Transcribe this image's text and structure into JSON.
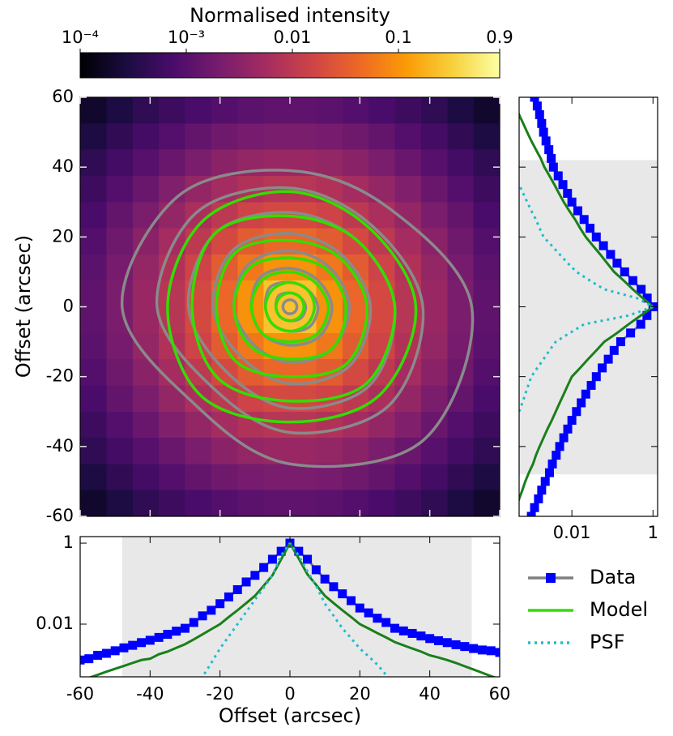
{
  "chart_data": [
    {
      "type": "heatmap",
      "ylabel": "Offset (arcsec)",
      "xlim": [
        -60,
        60
      ],
      "ylim": [
        -60,
        60
      ],
      "xticks": [
        -60,
        -40,
        -20,
        0,
        20,
        40,
        60
      ],
      "yticks": [
        -60,
        -40,
        -20,
        0,
        20,
        40,
        60
      ],
      "colormap": [
        "#000004",
        "#1b0c41",
        "#4a0c6b",
        "#781c6d",
        "#a52c60",
        "#cf4446",
        "#ed6925",
        "#fb9b06",
        "#f7d13d",
        "#fcffa4"
      ],
      "colorbar": {
        "label": "Normalised intensity",
        "log": true,
        "lim": [
          0.0001,
          0.9
        ],
        "ticks": [
          {
            "value": 0.0001,
            "label": "10⁻⁴"
          },
          {
            "value": 0.001,
            "label": "10⁻³"
          },
          0.01,
          0.1,
          0.9
        ]
      },
      "values": [
        [
          0.0002,
          0.00029,
          0.00042,
          0.00057,
          0.00076,
          0.00093,
          0.0011,
          0.0012,
          0.0012,
          0.0011,
          0.00093,
          0.00076,
          0.00057,
          0.00042,
          0.00029,
          0.0002
        ],
        [
          0.00029,
          0.00044,
          0.00066,
          0.00093,
          0.0013,
          0.0017,
          0.002,
          0.0022,
          0.0022,
          0.002,
          0.0017,
          0.0013,
          0.00093,
          0.00066,
          0.00044,
          0.00029
        ],
        [
          0.00042,
          0.00066,
          0.001,
          0.0015,
          0.0022,
          0.0031,
          0.0038,
          0.0043,
          0.0043,
          0.0038,
          0.0031,
          0.0022,
          0.0015,
          0.001,
          0.00066,
          0.00042
        ],
        [
          0.00057,
          0.00093,
          0.0015,
          0.0025,
          0.0038,
          0.0056,
          0.0074,
          0.0086,
          0.0086,
          0.0074,
          0.0056,
          0.0038,
          0.0025,
          0.0015,
          0.00093,
          0.00057
        ],
        [
          0.00076,
          0.0013,
          0.0022,
          0.0038,
          0.0065,
          0.01,
          0.015,
          0.018,
          0.018,
          0.015,
          0.01,
          0.0065,
          0.0038,
          0.0022,
          0.0013,
          0.00076
        ],
        [
          0.00093,
          0.0017,
          0.0031,
          0.0056,
          0.01,
          0.018,
          0.03,
          0.04,
          0.04,
          0.03,
          0.018,
          0.01,
          0.0056,
          0.0031,
          0.0017,
          0.00093
        ],
        [
          0.0011,
          0.002,
          0.0038,
          0.0074,
          0.015,
          0.03,
          0.058,
          0.097,
          0.097,
          0.058,
          0.03,
          0.015,
          0.0074,
          0.0038,
          0.002,
          0.0011
        ],
        [
          0.0012,
          0.0022,
          0.0043,
          0.0086,
          0.018,
          0.04,
          0.097,
          0.25,
          0.25,
          0.097,
          0.04,
          0.018,
          0.0086,
          0.0043,
          0.0022,
          0.0012
        ],
        [
          0.0012,
          0.0022,
          0.0043,
          0.0086,
          0.018,
          0.04,
          0.097,
          0.25,
          0.25,
          0.097,
          0.04,
          0.018,
          0.0086,
          0.0043,
          0.0022,
          0.0012
        ],
        [
          0.0011,
          0.002,
          0.0038,
          0.0074,
          0.015,
          0.03,
          0.058,
          0.097,
          0.097,
          0.058,
          0.03,
          0.015,
          0.0074,
          0.0038,
          0.002,
          0.0011
        ],
        [
          0.00093,
          0.0017,
          0.0031,
          0.0056,
          0.01,
          0.018,
          0.03,
          0.04,
          0.04,
          0.03,
          0.018,
          0.01,
          0.0056,
          0.0031,
          0.0017,
          0.00093
        ],
        [
          0.00076,
          0.0013,
          0.0022,
          0.0038,
          0.0065,
          0.01,
          0.015,
          0.018,
          0.018,
          0.015,
          0.01,
          0.0065,
          0.0038,
          0.0022,
          0.0013,
          0.00076
        ],
        [
          0.00057,
          0.00093,
          0.0015,
          0.0025,
          0.0038,
          0.0056,
          0.0074,
          0.0086,
          0.0086,
          0.0074,
          0.0056,
          0.0038,
          0.0025,
          0.0015,
          0.00093,
          0.00057
        ],
        [
          0.00042,
          0.00066,
          0.001,
          0.0015,
          0.0022,
          0.0031,
          0.0038,
          0.0043,
          0.0043,
          0.0038,
          0.0031,
          0.0022,
          0.0015,
          0.001,
          0.00066,
          0.00042
        ],
        [
          0.00029,
          0.00044,
          0.00066,
          0.00093,
          0.0013,
          0.0017,
          0.002,
          0.0022,
          0.0022,
          0.002,
          0.0017,
          0.0013,
          0.00093,
          0.00066,
          0.00044,
          0.00029
        ],
        [
          0.0002,
          0.00029,
          0.00042,
          0.00057,
          0.00076,
          0.00093,
          0.0011,
          0.0012,
          0.0012,
          0.0011,
          0.00093,
          0.00076,
          0.00057,
          0.00042,
          0.00029,
          0.0002
        ]
      ],
      "contours": {
        "angles": [
          0,
          45,
          90,
          135,
          180,
          225,
          270,
          315
        ],
        "sets": [
          {
            "color": "#8a8a8a",
            "radii": [
              [
                52,
                40,
                39,
                45,
                48,
                39,
                45,
                54
              ],
              [
                38,
                33,
                34,
                38,
                38,
                32,
                36,
                40
              ],
              [
                30,
                27,
                27,
                30,
                29,
                26,
                29,
                32
              ],
              [
                23,
                21,
                21,
                23,
                22,
                20,
                22,
                24
              ],
              [
                17,
                16,
                16,
                17,
                16,
                15,
                16,
                17
              ],
              [
                12,
                11,
                11,
                12,
                11,
                11,
                11,
                12
              ],
              [
                8,
                7,
                7,
                8,
                7,
                7,
                7,
                8
              ],
              [
                4.5,
                4,
                4,
                4.5,
                4,
                4,
                4,
                4.5
              ],
              [
                2,
                2,
                2,
                2,
                2,
                2,
                2,
                2
              ]
            ]
          },
          {
            "color": "#33dd00",
            "radii": [
              [
                36,
                32,
                33,
                35,
                35,
                36,
                33,
                36
              ],
              [
                30,
                27,
                26,
                30,
                28,
                29,
                27,
                31
              ],
              [
                22,
                20,
                19,
                22,
                21,
                22,
                20,
                23
              ],
              [
                16,
                15,
                14,
                16,
                16,
                16,
                15,
                17
              ],
              [
                11,
                10,
                10,
                11,
                11,
                11,
                10,
                11
              ],
              [
                7,
                7,
                7,
                7,
                7,
                7,
                7,
                7
              ],
              [
                4,
                4,
                4,
                4,
                4,
                4,
                4,
                4
              ]
            ]
          }
        ]
      }
    },
    {
      "type": "profile-vertical",
      "xlim": [
        0.0005,
        1.3
      ],
      "xlog": true,
      "xticks": [
        0.01,
        1
      ],
      "ylim": [
        -60,
        60
      ],
      "yticks": [
        -60,
        -40,
        -20,
        0,
        20,
        40,
        60
      ],
      "shaded_range": [
        -48,
        42
      ],
      "y": [
        -60,
        -57.5,
        -55,
        -52.5,
        -50,
        -47.5,
        -45,
        -42.5,
        -40,
        -37.5,
        -35,
        -32.5,
        -30,
        -27.5,
        -25,
        -22.5,
        -20,
        -17.5,
        -15,
        -12.5,
        -10,
        -7.5,
        -5,
        -2.5,
        0,
        2.5,
        5,
        7.5,
        10,
        12.5,
        15,
        17.5,
        20,
        22.5,
        25,
        27.5,
        30,
        32.5,
        35,
        37.5,
        40,
        42.5,
        45,
        47.5,
        50,
        52.5,
        55,
        57.5,
        60
      ],
      "series": [
        {
          "color": "#0000ff",
          "line_color": "#808080",
          "marker": "square",
          "style": "solid",
          "values": [
            0.001,
            0.0012,
            0.0015,
            0.0018,
            0.0022,
            0.0028,
            0.0033,
            0.0041,
            0.005,
            0.0063,
            0.0079,
            0.01,
            0.013,
            0.017,
            0.022,
            0.03,
            0.04,
            0.056,
            0.079,
            0.11,
            0.16,
            0.28,
            0.5,
            0.71,
            1,
            0.72,
            0.51,
            0.32,
            0.2,
            0.13,
            0.09,
            0.06,
            0.04,
            0.028,
            0.02,
            0.014,
            0.01,
            0.0078,
            0.006,
            0.0046,
            0.0035,
            0.0031,
            0.0027,
            0.0023,
            0.002,
            0.0018,
            0.0016,
            0.0014,
            0.0012
          ]
        },
        {
          "color": "#33dd00",
          "line_color": "#1a7f1a",
          "style": "solid",
          "values": [
            0.00035,
            0.00042,
            0.0005,
            0.0006,
            0.00071,
            0.00087,
            0.0011,
            0.0013,
            0.0016,
            0.002,
            0.0025,
            0.0032,
            0.004,
            0.005,
            0.0063,
            0.0079,
            0.01,
            0.016,
            0.025,
            0.04,
            0.063,
            0.13,
            0.25,
            0.5,
            1,
            0.56,
            0.32,
            0.19,
            0.11,
            0.074,
            0.05,
            0.033,
            0.022,
            0.016,
            0.012,
            0.0086,
            0.0063,
            0.0048,
            0.0037,
            0.0028,
            0.0021,
            0.0017,
            0.0013,
            0.001,
            0.00079,
            0.00063,
            0.0005,
            0.0004,
            0.00032
          ]
        },
        {
          "color": "#1fbccc",
          "style": "dotted",
          "values": [
            null,
            null,
            null,
            null,
            null,
            null,
            null,
            null,
            null,
            null,
            null,
            null,
            0.0005,
            0.0006,
            0.00071,
            0.00084,
            0.001,
            0.0014,
            0.002,
            0.0028,
            0.004,
            0.0089,
            0.02,
            0.25,
            1,
            0.4,
            0.063,
            0.028,
            0.013,
            0.0079,
            0.005,
            0.0032,
            0.002,
            0.0016,
            0.0013,
            0.001,
            0.00079,
            0.00063,
            0.0005,
            null,
            null,
            null,
            null,
            null,
            null,
            null,
            null,
            null,
            null
          ]
        }
      ]
    },
    {
      "type": "profile",
      "xlabel": "Offset (arcsec)",
      "xlim": [
        -60,
        60
      ],
      "xticks": [
        -60,
        -40,
        -20,
        0,
        20,
        40,
        60
      ],
      "ylim": [
        0.0005,
        1.45
      ],
      "ylog": true,
      "yticks": [
        0.01,
        1
      ],
      "shaded_range": [
        -48,
        52
      ],
      "legend": "outside lower right",
      "x": [
        -60,
        -57.5,
        -55,
        -52.5,
        -50,
        -47.5,
        -45,
        -42.5,
        -40,
        -37.5,
        -35,
        -32.5,
        -30,
        -27.5,
        -25,
        -22.5,
        -20,
        -17.5,
        -15,
        -12.5,
        -10,
        -7.5,
        -5,
        -2.5,
        0,
        2.5,
        5,
        7.5,
        10,
        12.5,
        15,
        17.5,
        20,
        22.5,
        25,
        27.5,
        30,
        32.5,
        35,
        37.5,
        40,
        42.5,
        45,
        47.5,
        50,
        52.5,
        55,
        57.5,
        60
      ],
      "series": [
        {
          "name": "Data",
          "color": "#0000ff",
          "line_color": "#808080",
          "marker": "square",
          "style": "solid",
          "values": [
            0.0013,
            0.0014,
            0.0017,
            0.0019,
            0.0022,
            0.0026,
            0.003,
            0.0035,
            0.004,
            0.0047,
            0.0056,
            0.0067,
            0.0079,
            0.011,
            0.016,
            0.022,
            0.032,
            0.047,
            0.071,
            0.11,
            0.16,
            0.25,
            0.4,
            0.63,
            1,
            0.63,
            0.4,
            0.22,
            0.13,
            0.084,
            0.056,
            0.038,
            0.025,
            0.019,
            0.014,
            0.011,
            0.0079,
            0.0068,
            0.0059,
            0.0051,
            0.0044,
            0.0039,
            0.0035,
            0.0031,
            0.0028,
            0.0025,
            0.0023,
            0.0022,
            0.002
          ]
        },
        {
          "name": "Model",
          "color": "#33dd00",
          "line_color": "#1a7f1a",
          "style": "solid",
          "values": [
            0.0004,
            0.00047,
            0.00056,
            0.00067,
            0.00079,
            0.00093,
            0.0011,
            0.0013,
            0.0014,
            0.0018,
            0.0021,
            0.0026,
            0.0032,
            0.0042,
            0.0056,
            0.0075,
            0.01,
            0.015,
            0.022,
            0.033,
            0.05,
            0.089,
            0.16,
            0.4,
            1,
            0.42,
            0.17,
            0.093,
            0.05,
            0.033,
            0.022,
            0.015,
            0.01,
            0.0078,
            0.006,
            0.0047,
            0.0036,
            0.003,
            0.0025,
            0.0021,
            0.0017,
            0.0015,
            0.0013,
            0.0011,
            0.00091,
            0.00076,
            0.00063,
            0.00052,
            0.00044
          ]
        },
        {
          "name": "PSF",
          "color": "#1fbccc",
          "style": "dotted",
          "values": [
            null,
            null,
            null,
            null,
            null,
            null,
            null,
            null,
            null,
            null,
            null,
            null,
            null,
            0.0004,
            0.0005,
            0.0011,
            0.0025,
            0.005,
            0.01,
            0.02,
            0.04,
            0.079,
            0.16,
            0.5,
            1,
            0.5,
            0.2,
            0.089,
            0.032,
            0.016,
            0.0079,
            0.0045,
            0.0025,
            0.0016,
            0.001,
            0.00056,
            0.00032,
            null,
            null,
            null,
            null,
            null,
            null,
            null,
            null,
            null,
            null,
            null,
            null
          ]
        }
      ]
    }
  ]
}
